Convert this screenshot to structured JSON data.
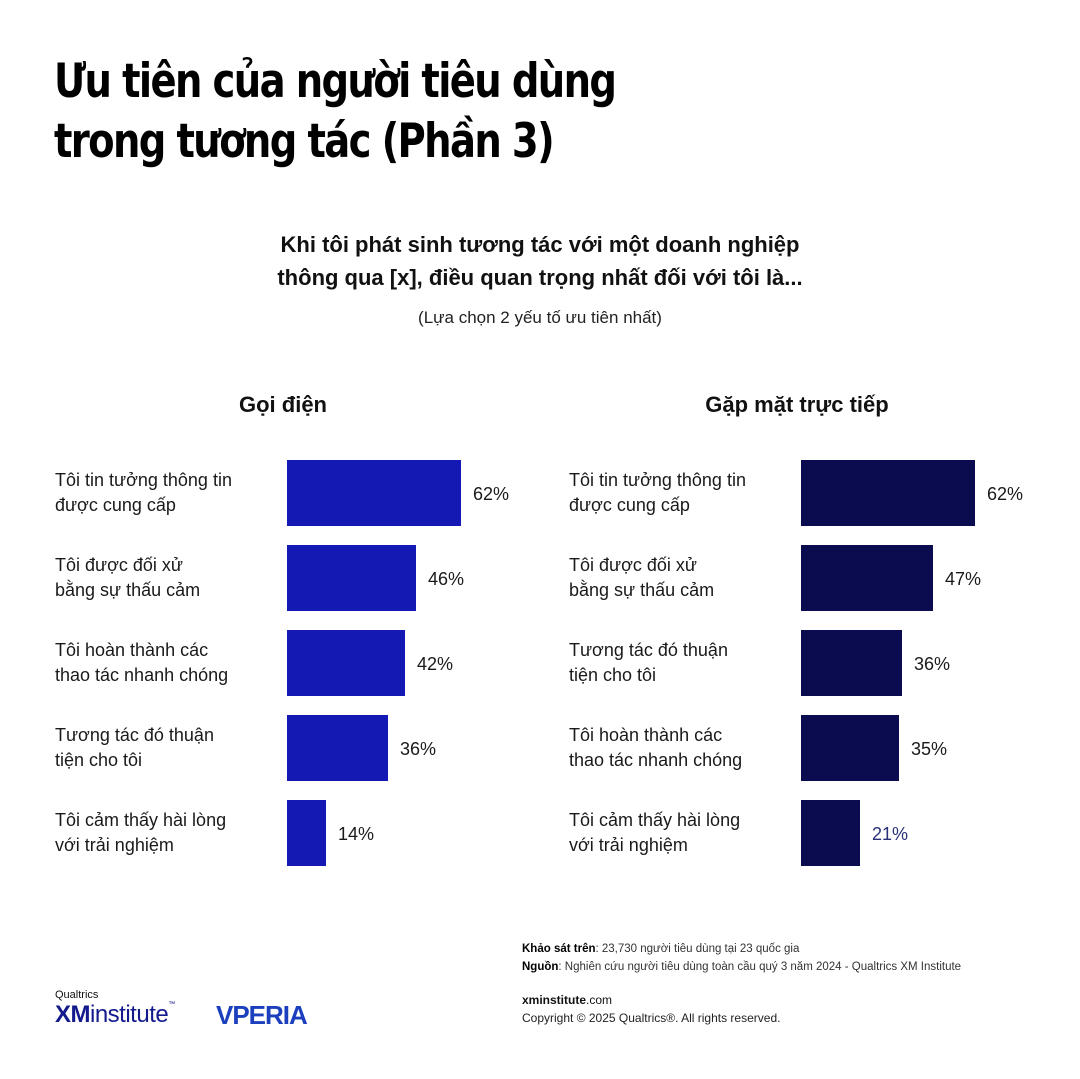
{
  "title_lines": [
    "Ưu tiên của người tiêu dùng",
    "trong tương tác (Phần 3)"
  ],
  "question_lines": [
    "Khi tôi phát sinh tương tác với một doanh nghiệp",
    "thông qua [x], điều quan trọng nhất đối với tôi là..."
  ],
  "hint": "(Lựa chọn 2 yếu tố ưu tiên nhất)",
  "colors": {
    "call_bar": "#1419b4",
    "inperson_bar": "#0b0c50",
    "inperson_last_label": "#2a3078"
  },
  "chart_data": [
    {
      "type": "bar",
      "orientation": "horizontal",
      "title": "Gọi điện",
      "categories": [
        [
          "Tôi tin tưởng thông tin",
          "được cung cấp"
        ],
        [
          "Tôi được đối xử",
          "bằng sự thấu cảm"
        ],
        [
          "Tôi hoàn thành các",
          "thao tác nhanh chóng"
        ],
        [
          "Tương tác đó thuận",
          "tiện cho tôi"
        ],
        [
          "Tôi cảm thấy hài lòng",
          "với trải nghiệm"
        ]
      ],
      "values": [
        62,
        46,
        42,
        36,
        14
      ],
      "value_labels": [
        "62%",
        "46%",
        "42%",
        "36%",
        "14%"
      ],
      "xlim": [
        0,
        100
      ]
    },
    {
      "type": "bar",
      "orientation": "horizontal",
      "title": "Gặp mặt trực tiếp",
      "categories": [
        [
          "Tôi tin tưởng thông tin",
          "được cung cấp"
        ],
        [
          "Tôi được đối xử",
          "bằng sự thấu cảm"
        ],
        [
          "Tương tác đó thuận",
          "tiện cho tôi"
        ],
        [
          "Tôi hoàn thành các",
          "thao tác nhanh chóng"
        ],
        [
          "Tôi cảm thấy hài lòng",
          "với trải nghiệm"
        ]
      ],
      "values": [
        62,
        47,
        36,
        35,
        21
      ],
      "value_labels": [
        "62%",
        "47%",
        "36%",
        "35%",
        "21%"
      ],
      "xlim": [
        0,
        100
      ]
    }
  ],
  "footer": {
    "survey_label": "Khảo sát trên",
    "survey_text": ": 23,730 người tiêu dùng tại 23 quốc gia",
    "source_label": "Nguồn",
    "source_text": ": Nghiên cứu người tiêu dùng toàn cầu quý 3 năm 2024 - Qualtrics XM Institute",
    "link_bold": "xminstitute",
    "link_rest": ".com",
    "copyright": "Copyright © 2025 Qualtrics®. All rights reserved."
  },
  "logos": {
    "qualtrics": "Qualtrics",
    "xm": "XM",
    "institute": "institute",
    "tm": "™",
    "vperia": "VPERIA"
  }
}
